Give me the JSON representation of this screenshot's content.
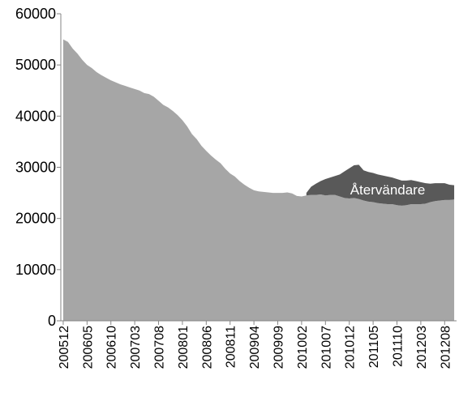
{
  "chart_data": {
    "type": "stacked-area",
    "categories": [
      "200512",
      null,
      null,
      null,
      null,
      "200605",
      null,
      null,
      null,
      null,
      "200610",
      null,
      null,
      null,
      null,
      "200703",
      null,
      null,
      null,
      null,
      "200708",
      null,
      null,
      null,
      null,
      "200801",
      null,
      null,
      null,
      null,
      "200806",
      null,
      null,
      null,
      null,
      "200811",
      null,
      null,
      null,
      null,
      "200904",
      null,
      null,
      null,
      null,
      "200909",
      null,
      null,
      null,
      null,
      "201002",
      null,
      null,
      null,
      null,
      "201007",
      null,
      null,
      null,
      null,
      "201012",
      null,
      null,
      null,
      null,
      "201105",
      null,
      null,
      null,
      null,
      "201110",
      null,
      null,
      null,
      null,
      "201203",
      null,
      null,
      null,
      null,
      "201208",
      null,
      null
    ],
    "series": [
      {
        "color": "#a6a6a6",
        "values": [
          55000,
          54500,
          53200,
          52200,
          51000,
          50000,
          49400,
          48600,
          48000,
          47500,
          47000,
          46600,
          46200,
          45900,
          45600,
          45300,
          45000,
          44500,
          44300,
          43800,
          43000,
          42200,
          41700,
          41000,
          40200,
          39200,
          38000,
          36500,
          35500,
          34200,
          33200,
          32300,
          31500,
          30800,
          29700,
          28800,
          28200,
          27300,
          26600,
          26000,
          25500,
          25300,
          25200,
          25100,
          25000,
          25000,
          25000,
          25100,
          24900,
          24400,
          24300,
          24500,
          24600,
          24600,
          24700,
          24500,
          24600,
          24600,
          24300,
          24000,
          23900,
          24000,
          23800,
          23500,
          23300,
          23200,
          23000,
          22900,
          22800,
          22800,
          22600,
          22500,
          22600,
          22800,
          22800,
          22800,
          22900,
          23200,
          23400,
          23500,
          23600,
          23600,
          23700
        ]
      },
      {
        "name": "Återvändare",
        "color": "#595959",
        "values": [
          null,
          null,
          null,
          null,
          null,
          null,
          null,
          null,
          null,
          null,
          null,
          null,
          null,
          null,
          null,
          null,
          null,
          null,
          null,
          null,
          null,
          null,
          null,
          null,
          null,
          null,
          null,
          null,
          null,
          null,
          null,
          null,
          null,
          null,
          null,
          null,
          null,
          null,
          null,
          null,
          null,
          null,
          null,
          null,
          null,
          null,
          null,
          null,
          null,
          null,
          null,
          500,
          1600,
          2200,
          2600,
          3200,
          3400,
          3700,
          4300,
          5200,
          5900,
          6400,
          6700,
          5900,
          5800,
          5700,
          5600,
          5500,
          5400,
          5200,
          5100,
          4900,
          4800,
          4700,
          4500,
          4300,
          4000,
          3600,
          3500,
          3400,
          3300,
          3000,
          2800
        ]
      }
    ],
    "ylim": [
      0,
      60000
    ],
    "yticks": [
      0,
      10000,
      20000,
      30000,
      40000,
      50000,
      60000
    ]
  }
}
